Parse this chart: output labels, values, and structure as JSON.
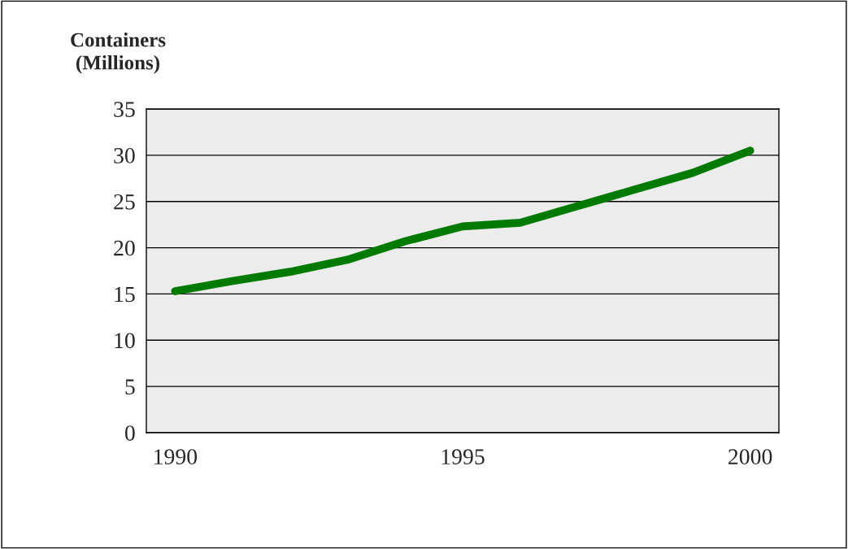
{
  "chart_data": {
    "type": "line",
    "ylabel": "Containers\n(Millions)",
    "categories": [
      "1990",
      null,
      null,
      null,
      null,
      "1995",
      null,
      null,
      null,
      null,
      "2000"
    ],
    "series": [
      {
        "color": "#007a00",
        "values": [
          15.3,
          16.4,
          17.4,
          18.7,
          20.7,
          22.3,
          22.7,
          24.5,
          26.3,
          28.1,
          30.5
        ]
      }
    ],
    "ylim": [
      0,
      35
    ],
    "yticks": [
      0,
      5,
      10,
      15,
      20,
      25,
      30,
      35
    ],
    "grid": "y",
    "marker": "none",
    "line_style": "solid"
  }
}
